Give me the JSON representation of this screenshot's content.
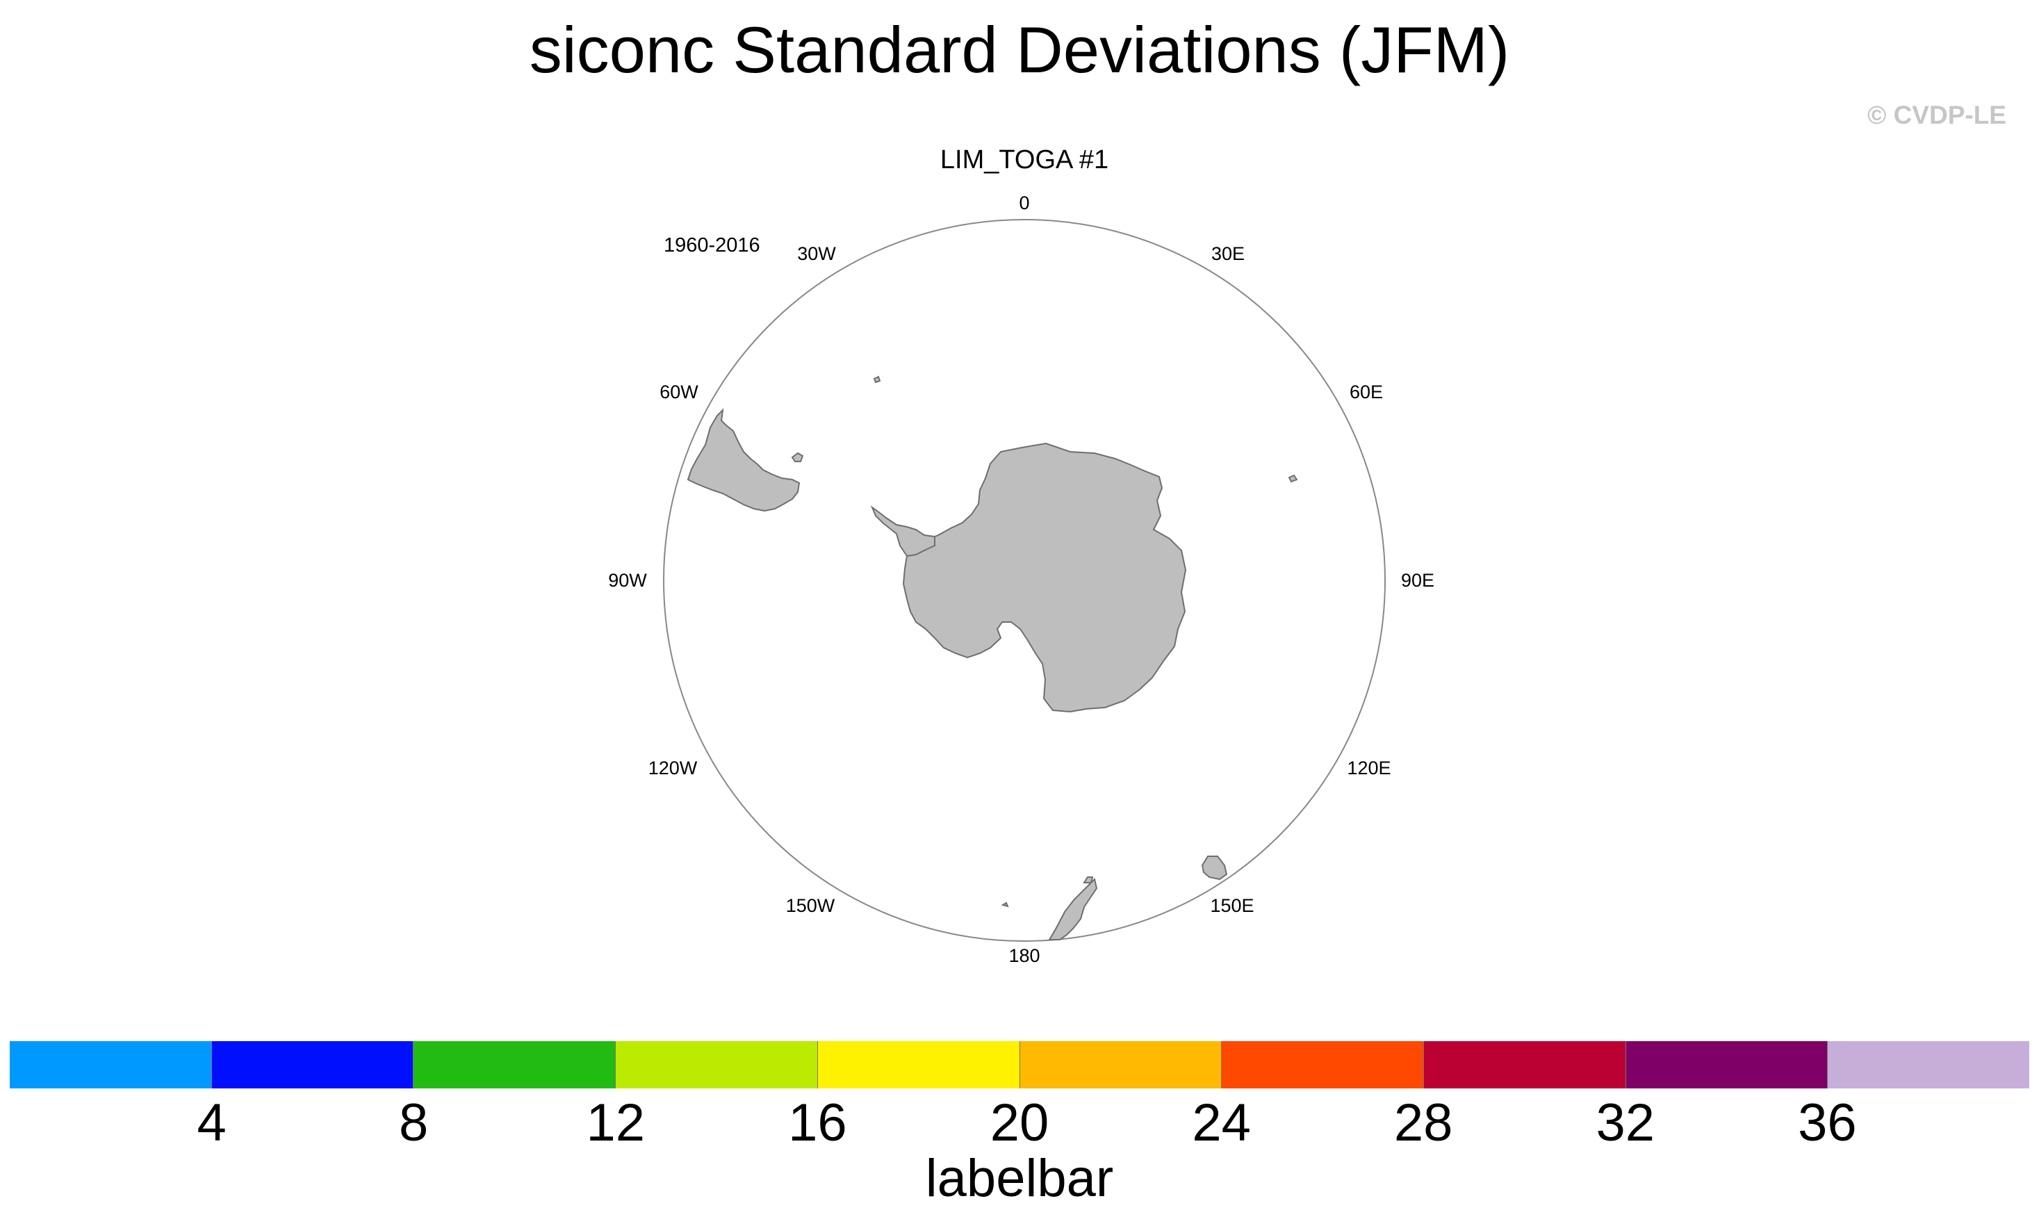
{
  "title": "siconc Standard Deviations (JFM)",
  "copyright": "© CVDP-LE",
  "panel": {
    "subtitle": "LIM_TOGA #1",
    "period": "1960-2016"
  },
  "map": {
    "projection": "polar stereographic",
    "hemisphere": "south",
    "land_color": "#bebebe",
    "longitude_labels": [
      "0",
      "30E",
      "60E",
      "90E",
      "120E",
      "150E",
      "180",
      "150W",
      "120W",
      "90W",
      "60W",
      "30W"
    ]
  },
  "labelbar": {
    "title": "labelbar",
    "colors": [
      "#0099ff",
      "#0010ff",
      "#22bb12",
      "#bbeb00",
      "#fff200",
      "#ffb900",
      "#ff4800",
      "#bb0033",
      "#7f0066",
      "#c7aed8"
    ],
    "tick_labels": [
      "4",
      "8",
      "12",
      "16",
      "20",
      "24",
      "28",
      "32",
      "36"
    ]
  }
}
